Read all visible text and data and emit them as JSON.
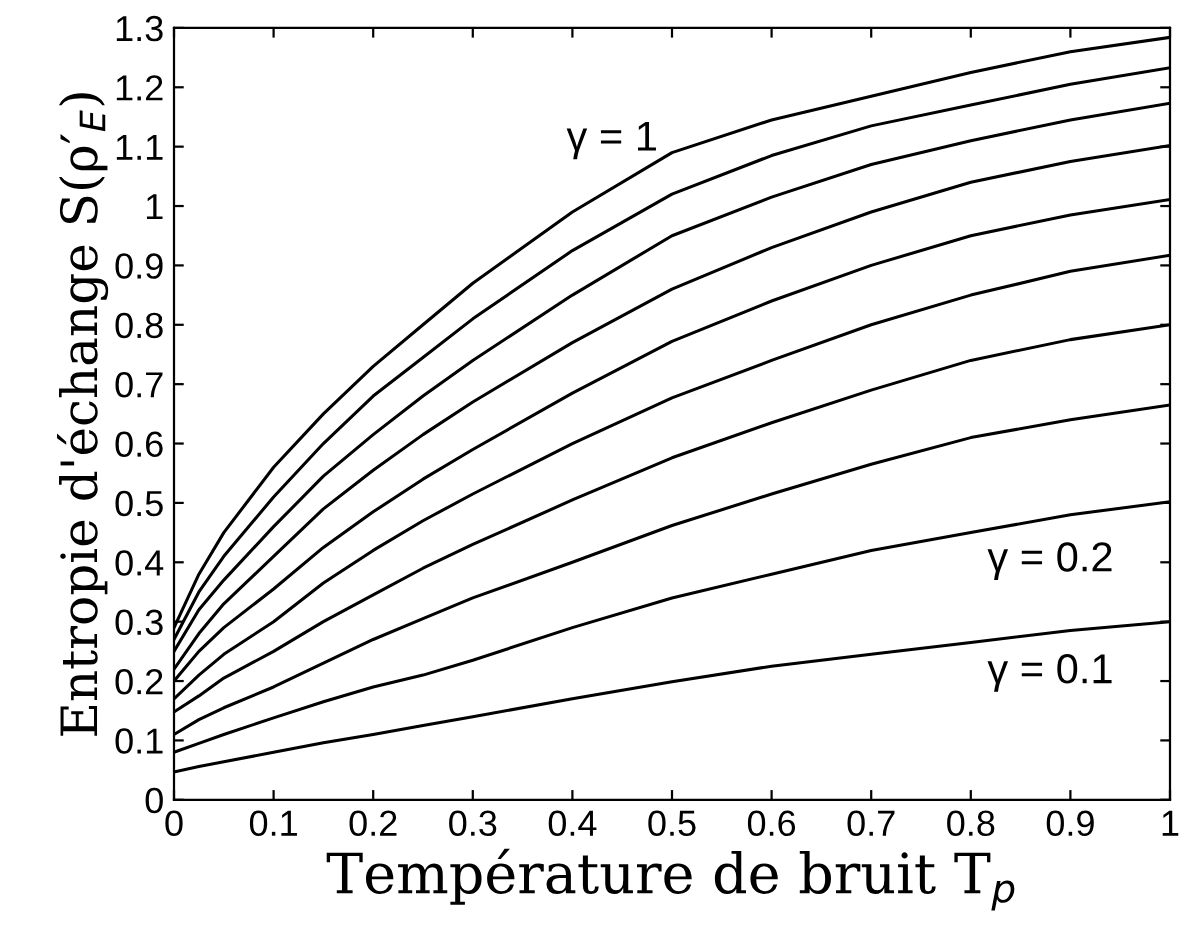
{
  "chart_data": {
    "type": "line",
    "xlabel": "Température de bruit T$_{p}$",
    "ylabel": "Entropie d'échange S(ρ′$_{E}$)",
    "x": [
      0,
      0.025,
      0.05,
      0.1,
      0.15,
      0.2,
      0.25,
      0.3,
      0.4,
      0.5,
      0.6,
      0.7,
      0.8,
      0.9,
      1
    ],
    "series": [
      {
        "color": "#000000",
        "values": [
          0.29,
          0.38,
          0.45,
          0.56,
          0.65,
          0.73,
          0.8,
          0.87,
          0.99,
          1.09,
          1.145,
          1.185,
          1.225,
          1.26,
          1.284
        ]
      },
      {
        "color": "#000000",
        "values": [
          0.27,
          0.35,
          0.41,
          0.51,
          0.6,
          0.68,
          0.745,
          0.81,
          0.925,
          1.02,
          1.085,
          1.135,
          1.17,
          1.205,
          1.233
        ]
      },
      {
        "color": "#000000",
        "values": [
          0.25,
          0.32,
          0.37,
          0.46,
          0.545,
          0.615,
          0.68,
          0.74,
          0.85,
          0.95,
          1.015,
          1.07,
          1.11,
          1.145,
          1.173
        ]
      },
      {
        "color": "#000000",
        "values": [
          0.22,
          0.28,
          0.33,
          0.41,
          0.49,
          0.555,
          0.615,
          0.67,
          0.77,
          0.86,
          0.93,
          0.99,
          1.04,
          1.075,
          1.102
        ]
      },
      {
        "color": "#000000",
        "values": [
          0.2,
          0.25,
          0.29,
          0.355,
          0.425,
          0.485,
          0.54,
          0.59,
          0.685,
          0.772,
          0.84,
          0.9,
          0.95,
          0.985,
          1.011
        ]
      },
      {
        "color": "#000000",
        "values": [
          0.17,
          0.21,
          0.245,
          0.3,
          0.365,
          0.42,
          0.47,
          0.515,
          0.6,
          0.677,
          0.74,
          0.8,
          0.85,
          0.89,
          0.917
        ]
      },
      {
        "color": "#000000",
        "values": [
          0.148,
          0.175,
          0.205,
          0.25,
          0.3,
          0.345,
          0.39,
          0.43,
          0.505,
          0.576,
          0.635,
          0.69,
          0.74,
          0.775,
          0.8
        ]
      },
      {
        "color": "#000000",
        "values": [
          0.11,
          0.135,
          0.155,
          0.19,
          0.23,
          0.27,
          0.305,
          0.34,
          0.4,
          0.462,
          0.515,
          0.565,
          0.61,
          0.64,
          0.665
        ]
      },
      {
        "color": "#000000",
        "values": [
          0.08,
          0.095,
          0.11,
          0.138,
          0.165,
          0.19,
          0.21,
          0.235,
          0.29,
          0.34,
          0.38,
          0.42,
          0.45,
          0.48,
          0.502
        ]
      },
      {
        "color": "#000000",
        "values": [
          0.047,
          0.056,
          0.064,
          0.08,
          0.096,
          0.11,
          0.125,
          0.14,
          0.17,
          0.199,
          0.225,
          0.245,
          0.265,
          0.285,
          0.3
        ]
      }
    ],
    "annotations": [
      "γ = 1",
      "γ = 0.2",
      "γ = 0.1"
    ],
    "xlim": [
      0,
      1
    ],
    "ylim": [
      0,
      1.3
    ],
    "xticks": [
      0,
      0.1,
      0.2,
      0.3,
      0.4,
      0.5,
      0.6,
      0.7,
      0.8,
      0.9,
      1
    ],
    "yticks": [
      0,
      0.1,
      0.2,
      0.3,
      0.4,
      0.5,
      0.6,
      0.7,
      0.8,
      0.9,
      1,
      1.1,
      1.2,
      1.3
    ],
    "grid": false,
    "marker": "none",
    "line_style": "solid"
  }
}
